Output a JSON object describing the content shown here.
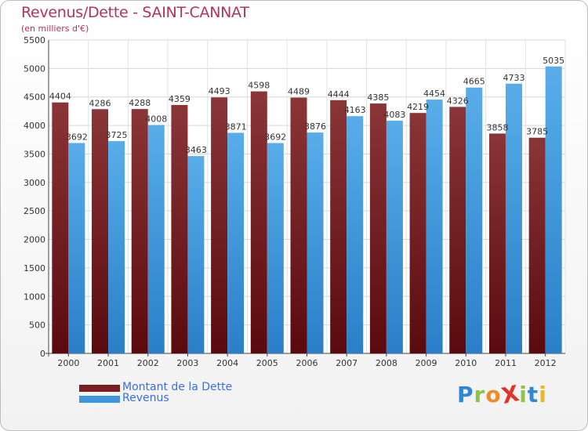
{
  "title": "Revenus/Dette - SAINT-CANNAT",
  "subtitle": "(en milliers d'€)",
  "legend": [
    {
      "label": "Montant de la Dette",
      "color": "#7a1e22"
    },
    {
      "label": "Revenus",
      "color": "#3d95de"
    }
  ],
  "logo": {
    "text": "ProXiti",
    "letters": [
      {
        "ch": "P",
        "color": "#2f86d6"
      },
      {
        "ch": "r",
        "color": "#8ac44a"
      },
      {
        "ch": "o",
        "color": "#f08a24"
      },
      {
        "ch": "X",
        "color": "#e0342b"
      },
      {
        "ch": "i",
        "color": "#8ac44a"
      },
      {
        "ch": "t",
        "color": "#2f86d6"
      },
      {
        "ch": "i",
        "color": "#f0b429"
      }
    ]
  },
  "chart_data": {
    "type": "bar",
    "categories": [
      "2000",
      "2001",
      "2002",
      "2003",
      "2004",
      "2005",
      "2006",
      "2007",
      "2008",
      "2009",
      "2010",
      "2011",
      "2012"
    ],
    "series": [
      {
        "name": "Montant de la Dette",
        "values": [
          4404,
          4286,
          4288,
          4359,
          4493,
          4598,
          4489,
          4444,
          4385,
          4219,
          4326,
          3858,
          3785
        ]
      },
      {
        "name": "Revenus",
        "values": [
          3692,
          3725,
          4008,
          3463,
          3871,
          3692,
          3876,
          4163,
          4083,
          4454,
          4665,
          4733,
          5035
        ]
      }
    ],
    "ylim": [
      0,
      5500
    ],
    "yticks": [
      0,
      500,
      1000,
      1500,
      2000,
      2500,
      3000,
      3500,
      4000,
      4500,
      5000,
      5500
    ],
    "grid": true,
    "legend_position": "bottom-left"
  }
}
